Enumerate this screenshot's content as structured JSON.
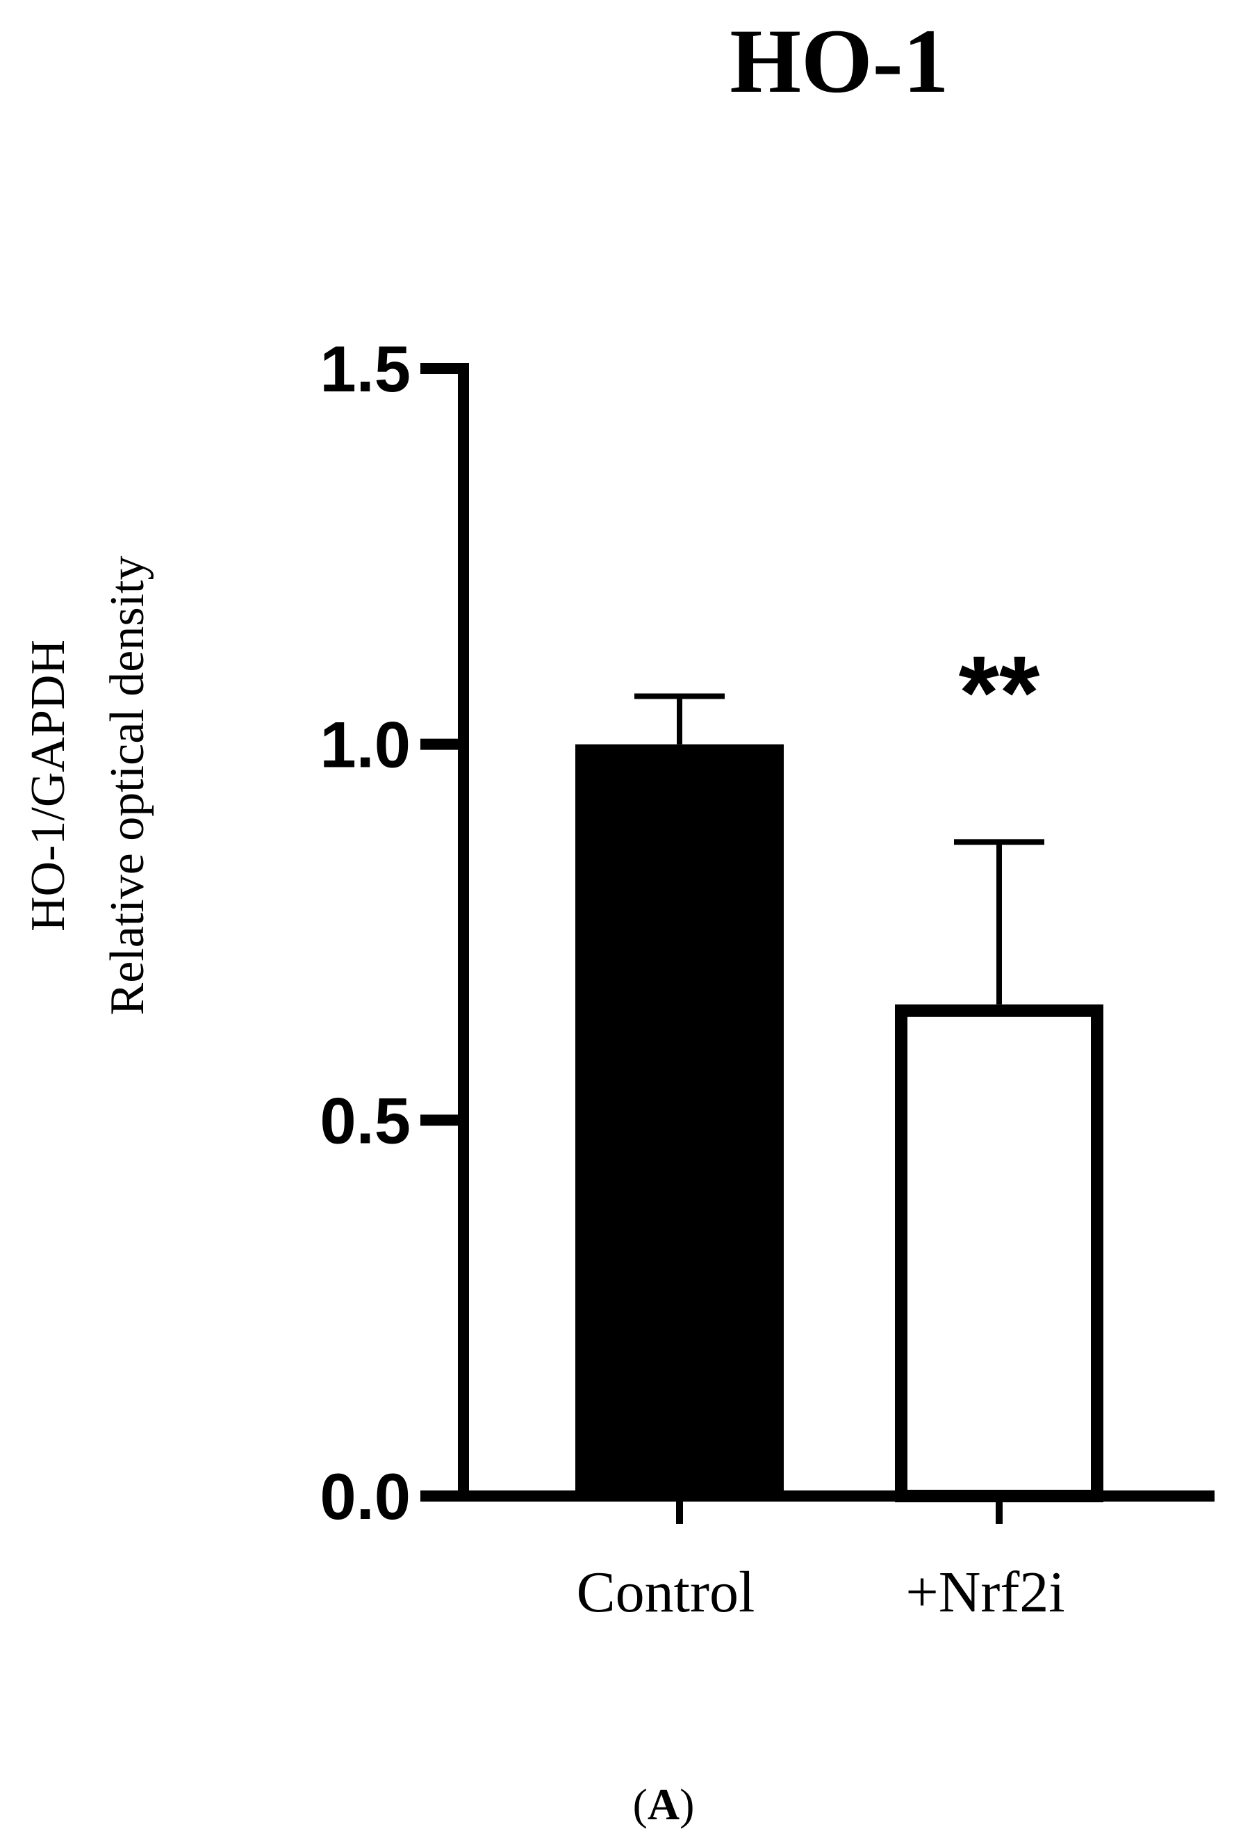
{
  "chart_data": {
    "type": "bar",
    "title": "HO-1",
    "ylabel_lines": [
      "HO-1/GAPDH",
      "Relative optical density"
    ],
    "xlabel": "",
    "categories": [
      "Control",
      "+Nrf2i"
    ],
    "values": [
      1.0,
      0.654
    ],
    "errors": [
      0.064,
      0.216
    ],
    "ylim": [
      0,
      1.5
    ],
    "yticks": [
      0.0,
      0.5,
      1.0,
      1.5
    ],
    "ytick_labels": [
      "0.0",
      "0.5",
      "1.0",
      "1.5"
    ],
    "bar_fills": [
      "#000000",
      "#ffffff"
    ],
    "bar_stroke": "#000000",
    "significance": [
      "",
      "**"
    ],
    "grid": false,
    "legend": "none"
  },
  "panel_label": {
    "open": "(",
    "letter": "A",
    "close": ")"
  }
}
